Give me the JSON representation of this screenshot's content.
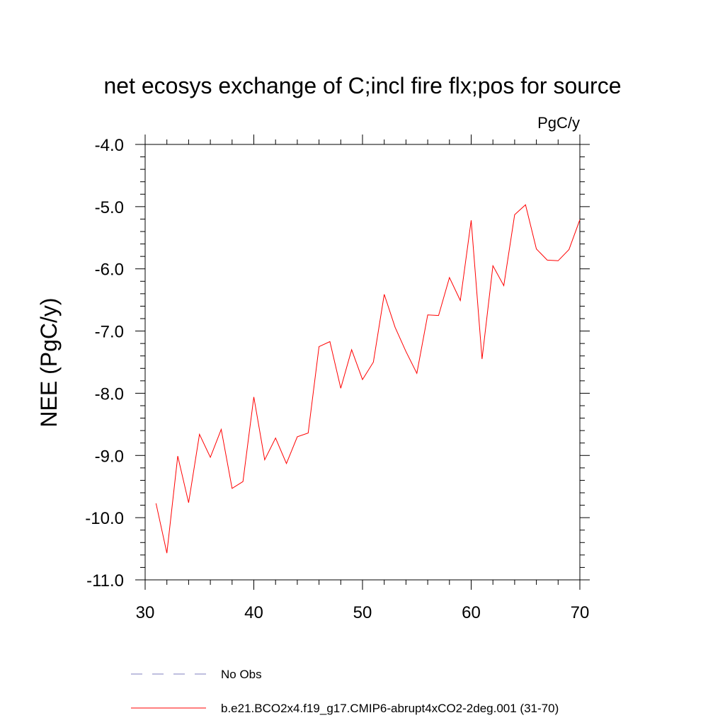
{
  "chart_data": {
    "type": "line",
    "title": "net ecosys exchange of C;incl fire flx;pos for source",
    "units_label": "PgC/y",
    "ylabel": "NEE  (PgC/y)",
    "xlabel": "",
    "xlim": [
      30,
      70
    ],
    "ylim": [
      -11.0,
      -4.0
    ],
    "x_ticks": [
      30,
      40,
      50,
      60,
      70
    ],
    "x_tick_labels": [
      "30",
      "40",
      "50",
      "60",
      "70"
    ],
    "y_ticks": [
      -4.0,
      -5.0,
      -6.0,
      -7.0,
      -8.0,
      -9.0,
      -10.0,
      -11.0
    ],
    "y_tick_labels": [
      "-4.0",
      "-5.0",
      "-6.0",
      "-7.0",
      "-8.0",
      "-9.0",
      "-10.0",
      "-11.0"
    ],
    "grid": false,
    "legend_position": "bottom",
    "series": [
      {
        "name": "No Obs",
        "color": "#7f7fbf",
        "style": "dashed",
        "x": [],
        "values": []
      },
      {
        "name": "b.e21.BCO2x4.f19_g17.CMIP6-abrupt4xCO2-2deg.001 (31-70)",
        "color": "#ff0000",
        "style": "solid",
        "x": [
          31,
          32,
          33,
          34,
          35,
          36,
          37,
          38,
          39,
          40,
          41,
          42,
          43,
          44,
          45,
          46,
          47,
          48,
          49,
          50,
          51,
          52,
          53,
          54,
          55,
          56,
          57,
          58,
          59,
          60,
          61,
          62,
          63,
          64,
          65,
          66,
          67,
          68,
          69,
          70
        ],
        "values": [
          -9.77,
          -10.57,
          -9.01,
          -9.76,
          -8.66,
          -9.03,
          -8.58,
          -9.53,
          -9.42,
          -8.06,
          -9.07,
          -8.72,
          -9.13,
          -8.7,
          -8.64,
          -7.25,
          -7.17,
          -7.92,
          -7.3,
          -7.78,
          -7.5,
          -6.41,
          -6.94,
          -7.33,
          -7.68,
          -6.74,
          -6.75,
          -6.14,
          -6.51,
          -5.22,
          -7.45,
          -5.95,
          -6.27,
          -5.13,
          -4.97,
          -5.68,
          -5.86,
          -5.87,
          -5.69,
          -5.21
        ]
      }
    ]
  }
}
